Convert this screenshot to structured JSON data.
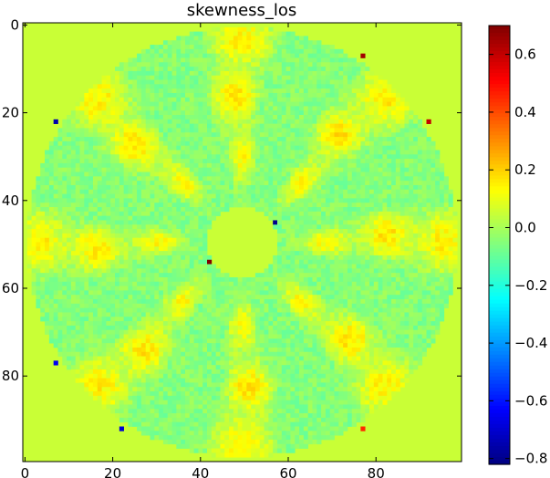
{
  "chart_data": {
    "type": "heatmap",
    "title": "skewness_los",
    "xlabel": "",
    "ylabel": "",
    "image_shape": [
      100,
      100
    ],
    "xlim": [
      -0.5,
      99.5
    ],
    "ylim": [
      99.5,
      -0.5
    ],
    "x_ticks": [
      0,
      20,
      40,
      60,
      80
    ],
    "y_ticks": [
      0,
      20,
      40,
      60,
      80
    ],
    "x_tick_labels": [
      "0",
      "20",
      "40",
      "60",
      "80"
    ],
    "y_tick_labels": [
      "0",
      "20",
      "40",
      "60",
      "80"
    ],
    "colormap": "jet",
    "colorbar": {
      "vmin": -0.82,
      "vmax": 0.7,
      "ticks": [
        0.6,
        0.4,
        0.2,
        0.0,
        -0.2,
        -0.4,
        -0.6,
        -0.8
      ],
      "tick_labels": [
        "0.6",
        "0.4",
        "0.2",
        "0.0",
        "−0.2",
        "−0.4",
        "−0.6",
        "−0.8"
      ]
    },
    "background_value": 0.05,
    "disk_radius": 49,
    "center_hole_radius": 8,
    "pattern": {
      "angular_lobes": 8,
      "radial_rings": [
        {
          "r": 19,
          "amplitude": 0.18
        },
        {
          "r": 33,
          "amplitude": 0.22
        },
        {
          "r": 46,
          "amplitude": 0.2
        }
      ],
      "base": -0.05,
      "noise": 0.05
    },
    "hot_points": [
      {
        "x": 77,
        "y": 7,
        "value": 0.65
      },
      {
        "x": 92,
        "y": 22,
        "value": 0.6
      },
      {
        "x": 42,
        "y": 54,
        "value": 0.7
      },
      {
        "x": 77,
        "y": 92,
        "value": 0.45
      }
    ],
    "cold_points": [
      {
        "x": 7,
        "y": 22,
        "value": -0.75
      },
      {
        "x": 57,
        "y": 45,
        "value": -0.8
      },
      {
        "x": 7,
        "y": 77,
        "value": -0.65
      },
      {
        "x": 22,
        "y": 92,
        "value": -0.7
      }
    ]
  }
}
